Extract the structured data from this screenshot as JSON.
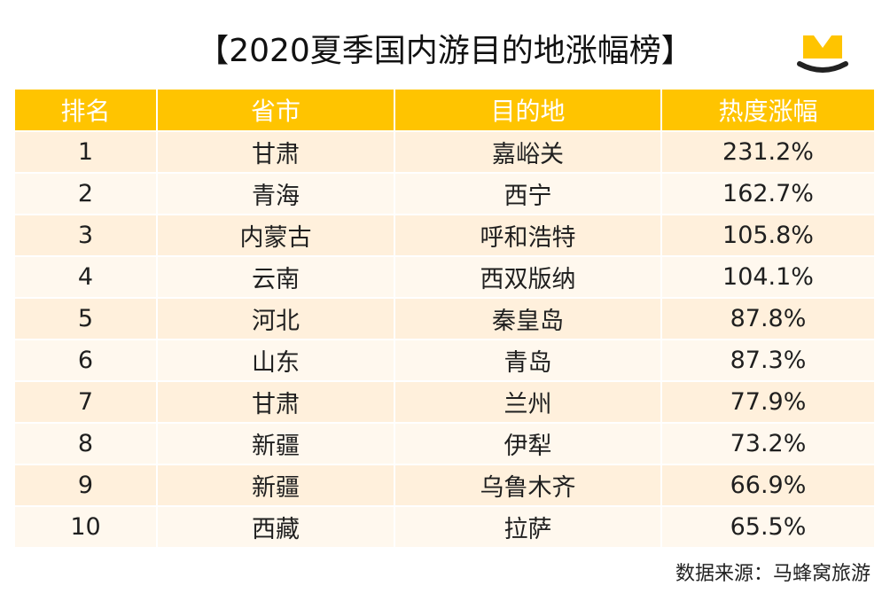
{
  "title": "【2020夏季国内游目的地涨幅榜】",
  "logo": {
    "icon": "mafengwo-logo-icon",
    "color_yellow": "#ffc400",
    "color_dark": "#222222"
  },
  "table": {
    "header_color": "#ffc400",
    "columns": [
      "排名",
      "省市",
      "目的地",
      "热度涨幅"
    ],
    "rows": [
      {
        "rank": "1",
        "province": "甘肃",
        "destination": "嘉峪关",
        "heat": "231.2%"
      },
      {
        "rank": "2",
        "province": "青海",
        "destination": "西宁",
        "heat": "162.7%"
      },
      {
        "rank": "3",
        "province": "内蒙古",
        "destination": "呼和浩特",
        "heat": "105.8%"
      },
      {
        "rank": "4",
        "province": "云南",
        "destination": "西双版纳",
        "heat": "104.1%"
      },
      {
        "rank": "5",
        "province": "河北",
        "destination": "秦皇岛",
        "heat": "87.8%"
      },
      {
        "rank": "6",
        "province": "山东",
        "destination": "青岛",
        "heat": "87.3%"
      },
      {
        "rank": "7",
        "province": "甘肃",
        "destination": "兰州",
        "heat": "77.9%"
      },
      {
        "rank": "8",
        "province": "新疆",
        "destination": "伊犁",
        "heat": "73.2%"
      },
      {
        "rank": "9",
        "province": "新疆",
        "destination": "乌鲁木齐",
        "heat": "66.9%"
      },
      {
        "rank": "10",
        "province": "西藏",
        "destination": "拉萨",
        "heat": "65.5%"
      }
    ]
  },
  "source": "数据来源：马蜂窝旅游"
}
